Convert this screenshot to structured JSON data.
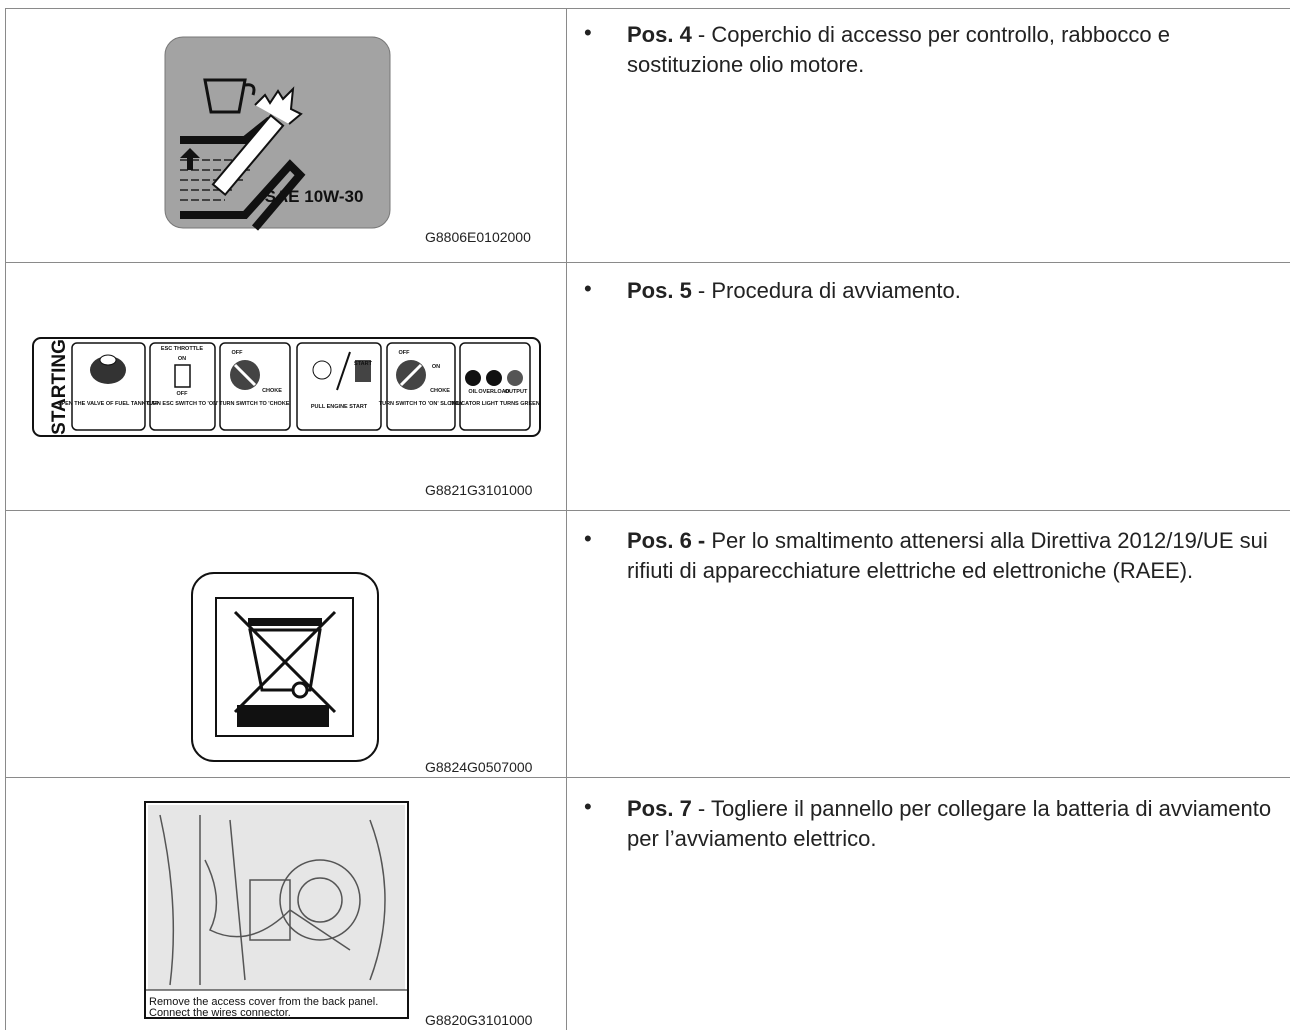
{
  "rows": [
    {
      "image": {
        "label": "SAE 10W-30",
        "code": "G8806E0102000"
      },
      "pos": "Pos. 4",
      "text": " - Coperchio di accesso per controllo, rabbocco e sostituzione olio motore."
    },
    {
      "image": {
        "title": "STARTING",
        "code": "G8821G3101000",
        "panels": [
          {
            "caption": "OPEN THE VALVE OF FUEL TANK CAP"
          },
          {
            "top": "ESC THROTTLE",
            "on": "ON",
            "off": "OFF",
            "caption": "TURN ESC SWITCH TO 'ON'"
          },
          {
            "off": "OFF",
            "choke": "CHOKE",
            "caption": "TURN SWITCH TO 'CHOKE'"
          },
          {
            "start": "START",
            "caption": "PULL ENGINE START"
          },
          {
            "off": "OFF",
            "on": "ON",
            "choke": "CHOKE",
            "caption": "TURN SWITCH TO 'ON' SLOWLY"
          },
          {
            "oil": "OIL",
            "overload": "OVERLOAD",
            "output": "OUTPUT",
            "caption": "INDICATOR LIGHT TURNS GREEN"
          }
        ]
      },
      "pos": "Pos. 5",
      "text": " - Procedura di avviamento."
    },
    {
      "image": {
        "code": "G8824G0507000"
      },
      "pos": "Pos. 6 -",
      "text": " Per lo smaltimento attenersi alla Direttiva 2012/19/UE sui rifiuti di apparecchiature elettriche ed elettroniche (RAEE)."
    },
    {
      "image": {
        "caption_1": "Remove the access cover from the back panel.",
        "caption_2": "Connect the wires connector.",
        "code": "G8820G3101000"
      },
      "pos": "Pos. 7",
      "text": " - Togliere il pannello per collegare la batteria di avviamento per l’avviamento elettrico."
    }
  ]
}
